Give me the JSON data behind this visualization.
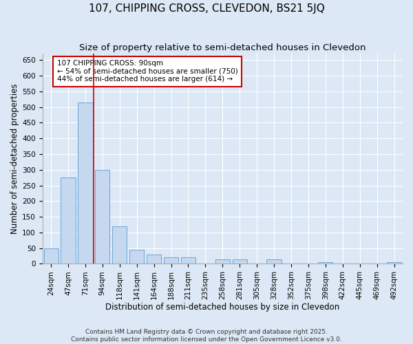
{
  "title": "107, CHIPPING CROSS, CLEVEDON, BS21 5JQ",
  "subtitle": "Size of property relative to semi-detached houses in Clevedon",
  "xlabel": "Distribution of semi-detached houses by size in Clevedon",
  "ylabel": "Number of semi-detached properties",
  "categories": [
    "24sqm",
    "47sqm",
    "71sqm",
    "94sqm",
    "118sqm",
    "141sqm",
    "164sqm",
    "188sqm",
    "211sqm",
    "235sqm",
    "258sqm",
    "281sqm",
    "305sqm",
    "328sqm",
    "352sqm",
    "375sqm",
    "398sqm",
    "422sqm",
    "445sqm",
    "469sqm",
    "492sqm"
  ],
  "values": [
    50,
    275,
    515,
    300,
    120,
    45,
    30,
    20,
    20,
    0,
    15,
    15,
    0,
    15,
    0,
    0,
    5,
    0,
    0,
    0,
    5
  ],
  "bar_color": "#c5d8f0",
  "bar_edge_color": "#5b9bd5",
  "vline_x_idx": 2,
  "vline_color": "#cc0000",
  "annotation_text": "107 CHIPPING CROSS: 90sqm\n← 54% of semi-detached houses are smaller (750)\n44% of semi-detached houses are larger (614) →",
  "annotation_box_color": "#ffffff",
  "annotation_box_edge": "#cc0000",
  "ylim": [
    0,
    670
  ],
  "yticks": [
    0,
    50,
    100,
    150,
    200,
    250,
    300,
    350,
    400,
    450,
    500,
    550,
    600,
    650
  ],
  "background_color": "#dce8f5",
  "grid_color": "#c8d8e8",
  "footer_text": "Contains HM Land Registry data © Crown copyright and database right 2025.\nContains public sector information licensed under the Open Government Licence v3.0.",
  "title_fontsize": 11,
  "subtitle_fontsize": 9.5,
  "label_fontsize": 8.5,
  "tick_fontsize": 7.5,
  "annotation_fontsize": 7.5,
  "footer_fontsize": 6.5
}
